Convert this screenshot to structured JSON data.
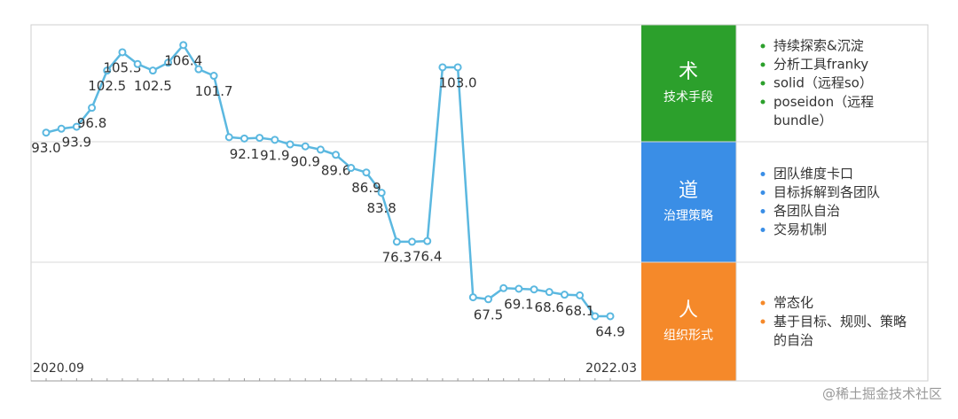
{
  "chart_data": {
    "type": "line",
    "categories": [
      "2020.09",
      null,
      null,
      null,
      null,
      null,
      null,
      null,
      null,
      null,
      null,
      null,
      null,
      null,
      null,
      null,
      null,
      null,
      null,
      null,
      null,
      null,
      null,
      null,
      null,
      null,
      null,
      null,
      null,
      null,
      null,
      null,
      null,
      null,
      null,
      null,
      null,
      "2022.03"
    ],
    "series": [
      {
        "color": "#5bb8e0",
        "values": [
          93.0,
          93.6,
          93.9,
          96.8,
          102.5,
          105.3,
          103.5,
          102.5,
          103.7,
          106.4,
          102.7,
          101.7,
          92.3,
          92.1,
          92.2,
          91.9,
          91.2,
          90.9,
          90.4,
          89.6,
          87.6,
          86.9,
          83.8,
          76.3,
          76.3,
          76.4,
          103.0,
          103.0,
          67.8,
          67.5,
          69.2,
          69.1,
          69.0,
          68.6,
          68.2,
          68.1,
          64.9,
          64.9
        ],
        "value_labels": [
          "93.0",
          null,
          "93.9",
          "96.8",
          "102.5",
          "105.3",
          null,
          "102.5",
          null,
          "106.4",
          null,
          "101.7",
          null,
          "92.1",
          null,
          "91.9",
          null,
          "90.9",
          null,
          "89.6",
          null,
          "86.9",
          "83.8",
          "76.3",
          null,
          "76.4",
          null,
          "103.0",
          null,
          "67.5",
          null,
          "69.1",
          null,
          "68.6",
          null,
          "68.1",
          null,
          "64.9"
        ]
      }
    ],
    "ylim": [
      55,
      109.5
    ]
  },
  "panel": {
    "rows": [
      {
        "title": "术",
        "subtitle": "技术手段",
        "color": "#2ca02c",
        "items": [
          "持续探索&沉淀",
          "分析工具franky",
          "solid（远程so）",
          "poseidon（远程\nbundle）"
        ]
      },
      {
        "title": "道",
        "subtitle": "治理策略",
        "color": "#3a8ee6",
        "items": [
          "团队维度卡口",
          "目标拆解到各团队",
          "各团队自治",
          "交易机制"
        ]
      },
      {
        "title": "人",
        "subtitle": "组织形式",
        "color": "#f5892a",
        "items": [
          "常态化",
          "基于目标、规则、策略\n的自治"
        ]
      }
    ],
    "watermark": "@稀土掘金技术社区"
  }
}
